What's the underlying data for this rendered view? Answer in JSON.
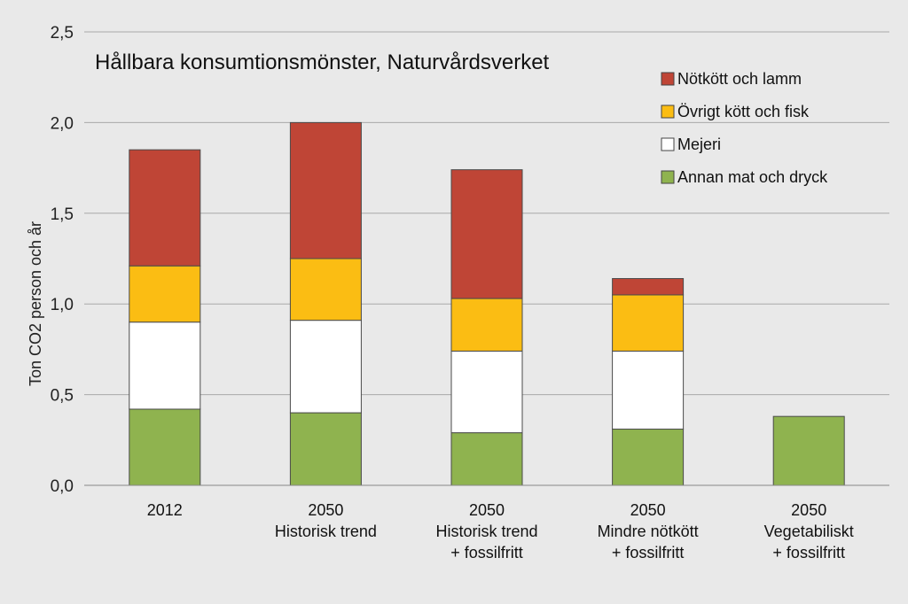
{
  "chart_data": {
    "type": "bar",
    "stacked": true,
    "title": "Hållbara konsumtionsmönster, Naturvårdsverket",
    "ylabel": "Ton CO2 person och år",
    "xlabel": "",
    "ylim": [
      0,
      2.5
    ],
    "yticks": [
      "0,0",
      "0,5",
      "1,0",
      "1,5",
      "2,0",
      "2,5"
    ],
    "grid": true,
    "legend_position": "top-right",
    "categories": [
      [
        "2012"
      ],
      [
        "2050",
        "Historisk trend"
      ],
      [
        "2050",
        "Historisk trend",
        "+ fossilfritt"
      ],
      [
        "2050",
        "Mindre nötkött",
        "+ fossilfritt"
      ],
      [
        "2050",
        "Vegetabiliskt",
        "+ fossilfritt"
      ]
    ],
    "series": [
      {
        "name": "Annan mat och dryck",
        "color": "#8fb34f",
        "values": [
          0.42,
          0.4,
          0.29,
          0.31,
          0.38
        ]
      },
      {
        "name": "Mejeri",
        "color": "#ffffff",
        "values": [
          0.48,
          0.51,
          0.45,
          0.43,
          0
        ]
      },
      {
        "name": "Övrigt kött och fisk",
        "color": "#fbbd13",
        "values": [
          0.31,
          0.34,
          0.29,
          0.31,
          0
        ]
      },
      {
        "name": "Nötkött och lamm",
        "color": "#bf4536",
        "values": [
          0.64,
          0.75,
          0.71,
          0.09,
          0
        ]
      }
    ],
    "legend_order": [
      "Nötkött och lamm",
      "Övrigt kött och fisk",
      "Mejeri",
      "Annan mat och dryck"
    ]
  }
}
